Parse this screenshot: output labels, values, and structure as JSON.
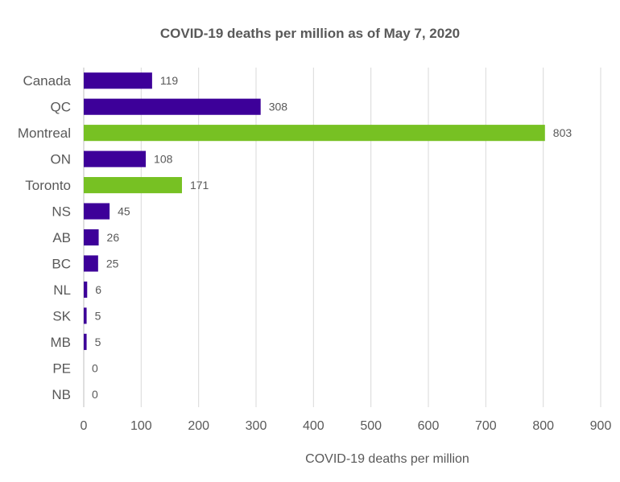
{
  "chart_data": {
    "type": "bar",
    "orientation": "horizontal",
    "title": "COVID-19 deaths per million as of May 7, 2020",
    "xlabel": "COVID-19 deaths per million",
    "ylabel": "",
    "categories": [
      "Canada",
      "QC",
      "Montreal",
      "ON",
      "Toronto",
      "NS",
      "AB",
      "BC",
      "NL",
      "SK",
      "MB",
      "PE",
      "NB"
    ],
    "values": [
      119,
      308,
      803,
      108,
      171,
      45,
      26,
      25,
      6,
      5,
      5,
      0,
      0
    ],
    "bar_colors": [
      "#3d0099",
      "#3d0099",
      "#77c123",
      "#3d0099",
      "#77c123",
      "#3d0099",
      "#3d0099",
      "#3d0099",
      "#3d0099",
      "#3d0099",
      "#3d0099",
      "#3d0099",
      "#3d0099"
    ],
    "xlim": [
      0,
      900
    ],
    "xticks": [
      0,
      100,
      200,
      300,
      400,
      500,
      600,
      700,
      800,
      900
    ],
    "grid": "vertical",
    "legend": "none",
    "data_labels": true
  }
}
